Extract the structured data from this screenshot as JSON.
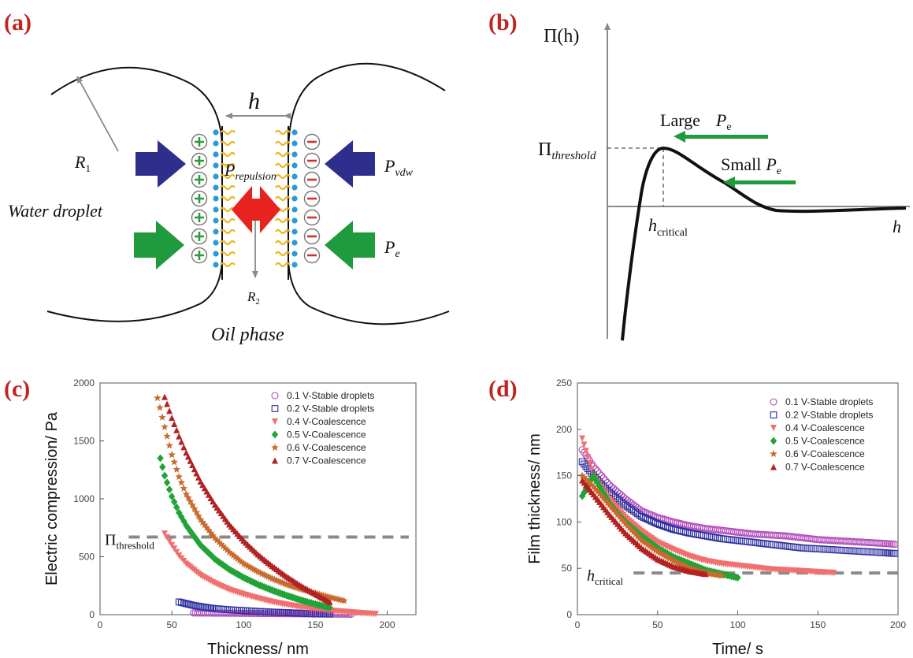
{
  "panel_labels": [
    "(a)",
    "(b)",
    "(c)",
    "(d)"
  ],
  "schematic": {
    "h": "h",
    "R1_main": "R",
    "R1_sub": "1",
    "R2_main": "R",
    "R2_sub": "2",
    "water_droplet": "Water droplet",
    "oil_phase": "Oil phase",
    "P_repulsion_main": "P",
    "P_repulsion_sub": "repulsion",
    "P_vdw_main": "P",
    "P_vdw_sub": "vdw",
    "P_e_main": "P",
    "P_e_sub": "e",
    "plus": "+",
    "minus": "−",
    "colors": {
      "vdw_arrow": "#2e2e8c",
      "e_arrow": "#1f9a3c",
      "repulsion_arrow": "#e8221f",
      "plus_fill": "#2f9a3c",
      "minus_fill": "#d0312d",
      "head": "#2b9ad8",
      "tail": "#f0b51a"
    }
  },
  "disjoining": {
    "y_label": "Π(h)",
    "threshold_main": "Π",
    "threshold_sub": "threshold",
    "hcrit_main": "h",
    "hcrit_sub": "critical",
    "x_label": "h",
    "large_text": "Large",
    "large_P": "P",
    "large_sub": "e",
    "small_text": "Small",
    "small_P": "P",
    "small_sub": "e",
    "arrow_color": "#1f9a3c"
  },
  "chart_data": [
    {
      "type": "scatter",
      "xlabel": "Thickness/ nm",
      "ylabel": "Electric compression/ Pa",
      "xlim": [
        0,
        220
      ],
      "ylim": [
        0,
        2000
      ],
      "xticks": [
        "0",
        "50",
        "100",
        "150",
        "200"
      ],
      "yticks": [
        "0",
        "500",
        "1000",
        "1500",
        "2000"
      ],
      "threshold_line": {
        "y": 670,
        "label_main": "Π",
        "label_sub": "threshold"
      },
      "legend": [
        "0.1 V-Stable droplets",
        "0.2 V-Stable droplets",
        "0.4 V-Coalescence",
        "0.5 V-Coalescence",
        "0.6 V-Coalescence",
        "0.7 V-Coalescence"
      ],
      "series": [
        {
          "name": "0.1 V-Stable droplets",
          "marker": "circle-open",
          "color": "#b04aba",
          "x": [
            65,
            75,
            85,
            95,
            105,
            115,
            125,
            135,
            145,
            155,
            165,
            175
          ],
          "y": [
            15,
            14,
            13,
            12,
            11,
            10,
            9,
            8,
            7,
            6,
            5,
            4
          ]
        },
        {
          "name": "0.2 V-Stable droplets",
          "marker": "square-open",
          "color": "#2b2fa0",
          "x": [
            55,
            60,
            65,
            70,
            75,
            80,
            90,
            100,
            110,
            120,
            130,
            140,
            150,
            160
          ],
          "y": [
            110,
            95,
            80,
            70,
            60,
            52,
            42,
            35,
            28,
            22,
            17,
            12,
            8,
            5
          ]
        },
        {
          "name": "0.4 V-Coalescence",
          "marker": "triangle-down",
          "color": "#f07070",
          "x": [
            45,
            50,
            55,
            60,
            70,
            80,
            90,
            100,
            110,
            120,
            130,
            140,
            150,
            160,
            170,
            180,
            192
          ],
          "y": [
            700,
            600,
            510,
            440,
            340,
            270,
            215,
            175,
            140,
            110,
            85,
            65,
            48,
            35,
            25,
            15,
            5
          ]
        },
        {
          "name": "0.5 V-Coalescence",
          "marker": "diamond",
          "color": "#22a336",
          "x": [
            42,
            45,
            50,
            55,
            60,
            70,
            80,
            90,
            100,
            110,
            120,
            130,
            140,
            150,
            160
          ],
          "y": [
            1350,
            1200,
            1020,
            880,
            770,
            600,
            480,
            390,
            320,
            260,
            210,
            165,
            125,
            90,
            60
          ]
        },
        {
          "name": "0.6 V-Coalescence",
          "marker": "star",
          "color": "#c96a2e",
          "x": [
            40,
            45,
            50,
            55,
            60,
            70,
            80,
            90,
            100,
            110,
            120,
            130,
            140,
            150,
            160,
            170
          ],
          "y": [
            1870,
            1620,
            1380,
            1190,
            1040,
            820,
            660,
            540,
            440,
            370,
            310,
            260,
            220,
            185,
            150,
            120
          ]
        },
        {
          "name": "0.7 V-Coalescence",
          "marker": "triangle-up",
          "color": "#b22222",
          "x": [
            45,
            50,
            55,
            60,
            70,
            80,
            90,
            100,
            110,
            120,
            130,
            140,
            150,
            160
          ],
          "y": [
            1880,
            1700,
            1540,
            1400,
            1150,
            950,
            780,
            640,
            520,
            420,
            330,
            250,
            180,
            110
          ]
        }
      ]
    },
    {
      "type": "scatter",
      "xlabel": "Time/ s",
      "ylabel": "Film thickness/ nm",
      "xlim": [
        0,
        200
      ],
      "ylim": [
        0,
        250
      ],
      "xticks": [
        "0",
        "50",
        "100",
        "150",
        "200"
      ],
      "yticks": [
        "0",
        "50",
        "100",
        "150",
        "200",
        "250"
      ],
      "critical_line": {
        "y": 45,
        "label_main": "h",
        "label_sub": "critical"
      },
      "legend": [
        "0.1 V-Stable droplets",
        "0.2 V-Stable droplets",
        "0.4 V-Coalescence",
        "0.5 V-Coalescence",
        "0.6 V-Coalescence",
        "0.7 V-Coalescence"
      ],
      "series": [
        {
          "name": "0.1 V-Stable droplets",
          "marker": "circle-open",
          "color": "#b04aba",
          "x": [
            3,
            10,
            20,
            30,
            40,
            50,
            60,
            70,
            80,
            90,
            100,
            110,
            120,
            130,
            140,
            150,
            160,
            170,
            180,
            190,
            198
          ],
          "y": [
            178,
            160,
            140,
            125,
            112,
            105,
            100,
            96,
            93,
            91,
            89,
            87,
            86,
            85,
            83,
            81,
            80,
            79,
            78,
            77,
            76
          ]
        },
        {
          "name": "0.2 V-Stable droplets",
          "marker": "square-open",
          "color": "#2b2fa0",
          "x": [
            3,
            10,
            20,
            30,
            40,
            50,
            60,
            70,
            80,
            90,
            100,
            110,
            120,
            130,
            140,
            150,
            160,
            170,
            180,
            190,
            198
          ],
          "y": [
            165,
            150,
            132,
            118,
            106,
            98,
            92,
            88,
            85,
            82,
            80,
            78,
            76,
            74,
            72,
            71,
            70,
            69,
            68,
            67,
            66
          ]
        },
        {
          "name": "0.4 V-Coalescence",
          "marker": "triangle-down",
          "color": "#f07070",
          "x": [
            3,
            10,
            20,
            30,
            40,
            50,
            60,
            70,
            80,
            90,
            100,
            110,
            120,
            130,
            140,
            150,
            160
          ],
          "y": [
            190,
            150,
            125,
            105,
            90,
            78,
            70,
            63,
            58,
            55,
            53,
            51,
            49,
            48,
            47,
            46,
            45
          ]
        },
        {
          "name": "0.5 V-Coalescence",
          "marker": "diamond",
          "color": "#22a336",
          "x": [
            3,
            10,
            20,
            30,
            40,
            50,
            60,
            70,
            80,
            90,
            100
          ],
          "y": [
            128,
            150,
            120,
            100,
            85,
            72,
            62,
            55,
            48,
            44,
            40
          ]
        },
        {
          "name": "0.6 V-Coalescence",
          "marker": "star",
          "color": "#c96a2e",
          "x": [
            3,
            10,
            20,
            30,
            40,
            50,
            60,
            70,
            80,
            90
          ],
          "y": [
            150,
            138,
            118,
            98,
            80,
            68,
            58,
            50,
            45,
            42
          ]
        },
        {
          "name": "0.7 V-Coalescence",
          "marker": "triangle-up",
          "color": "#b22222",
          "x": [
            3,
            10,
            20,
            30,
            40,
            50,
            60,
            70,
            80
          ],
          "y": [
            145,
            130,
            108,
            88,
            72,
            60,
            52,
            47,
            44
          ]
        }
      ]
    }
  ]
}
